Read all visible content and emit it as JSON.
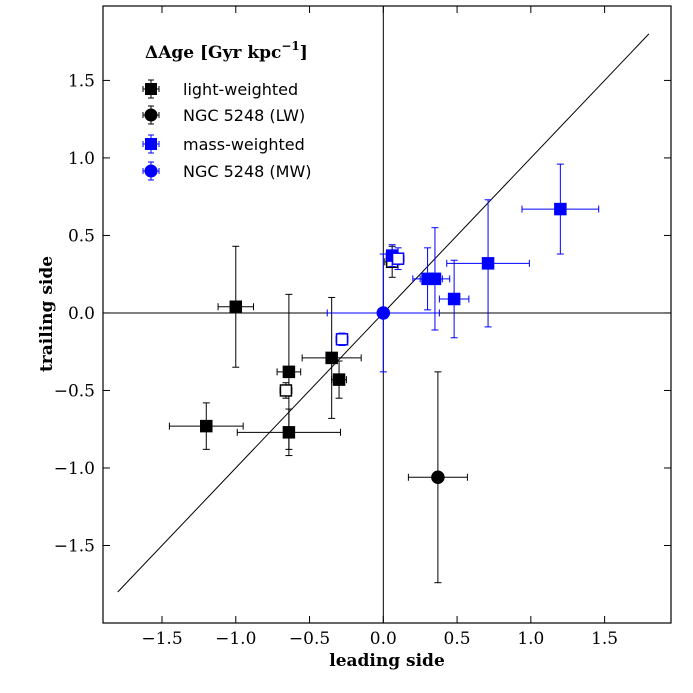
{
  "chart_data": {
    "type": "scatter",
    "title": "",
    "xlabel": "leading side",
    "ylabel": "trailing side",
    "xlim": [
      -1.9,
      1.95
    ],
    "ylim": [
      -2.0,
      1.98
    ],
    "xticks": [
      -1.5,
      -1.0,
      -0.5,
      0.0,
      0.5,
      1.0,
      1.5
    ],
    "yticks": [
      -1.5,
      -1.0,
      -0.5,
      0.0,
      0.5,
      1.0,
      1.5
    ],
    "xtick_labels": [
      "−1.5",
      "−1.0",
      "−0.5",
      "0.0",
      "0.5",
      "1.0",
      "1.5"
    ],
    "ytick_labels": [
      "−1.5",
      "−1.0",
      "−0.5",
      "0.0",
      "0.5",
      "1.0",
      "1.5"
    ],
    "reference_lines": {
      "vertical_x": 0.0,
      "horizontal_y": 0.0,
      "diagonal": {
        "from": [
          -1.8,
          -1.8
        ],
        "to": [
          1.8,
          1.8
        ]
      }
    },
    "legend": {
      "title_main": "ΔAge [Gyr kpc",
      "title_sup": "−1",
      "title_end": "]",
      "placement": "top-left",
      "entries": [
        {
          "label": "light-weighted",
          "marker": "square",
          "color": "#000000"
        },
        {
          "label": "NGC 5248 (LW)",
          "marker": "circle",
          "color": "#000000"
        },
        {
          "label": "mass-weighted",
          "marker": "square",
          "color": "#0000ff"
        },
        {
          "label": "NGC 5248 (MW)",
          "marker": "circle",
          "color": "#0000ff"
        }
      ]
    },
    "series": [
      {
        "name": "light-weighted",
        "color": "#000000",
        "marker": "square",
        "points": [
          {
            "x": -1.0,
            "y": 0.04,
            "xerr": 0.12,
            "yerr": 0.39,
            "filled": true
          },
          {
            "x": -0.64,
            "y": -0.38,
            "xerr": 0.08,
            "yerr": 0.5,
            "filled": true
          },
          {
            "x": -0.66,
            "y": -0.5,
            "xerr": 0.04,
            "yerr": 0.05,
            "filled": false
          },
          {
            "x": -0.35,
            "y": -0.29,
            "xerr": 0.2,
            "yerr": 0.39,
            "filled": true
          },
          {
            "x": -0.3,
            "y": -0.43,
            "xerr": 0.05,
            "yerr": 0.12,
            "filled": true
          },
          {
            "x": -1.2,
            "y": -0.73,
            "xerr": 0.25,
            "yerr": 0.15,
            "filled": true
          },
          {
            "x": -0.64,
            "y": -0.77,
            "xerr": 0.35,
            "yerr": 0.15,
            "filled": true
          },
          {
            "x": 0.06,
            "y": 0.33,
            "xerr": 0.05,
            "yerr": 0.1,
            "filled": false
          }
        ]
      },
      {
        "name": "NGC 5248 (LW)",
        "color": "#000000",
        "marker": "circle",
        "points": [
          {
            "x": 0.37,
            "y": -1.06,
            "xerr": 0.2,
            "yerr": 0.68,
            "filled": true
          }
        ]
      },
      {
        "name": "mass-weighted",
        "color": "#0000ff",
        "marker": "square",
        "points": [
          {
            "x": 0.06,
            "y": 0.37,
            "xerr": 0.04,
            "yerr": 0.07,
            "filled": true
          },
          {
            "x": 0.1,
            "y": 0.35,
            "xerr": 0.04,
            "yerr": 0.07,
            "filled": false
          },
          {
            "x": 0.3,
            "y": 0.22,
            "xerr": 0.1,
            "yerr": 0.2,
            "filled": true
          },
          {
            "x": 0.35,
            "y": 0.22,
            "xerr": 0.1,
            "yerr": 0.33,
            "filled": true
          },
          {
            "x": 0.48,
            "y": 0.09,
            "xerr": 0.1,
            "yerr": 0.25,
            "filled": true
          },
          {
            "x": 0.71,
            "y": 0.32,
            "xerr": 0.28,
            "yerr": 0.41,
            "filled": true
          },
          {
            "x": 1.2,
            "y": 0.67,
            "xerr": 0.26,
            "yerr": 0.29,
            "filled": true
          },
          {
            "x": -0.28,
            "y": -0.17,
            "xerr": 0.04,
            "yerr": 0.04,
            "filled": false
          }
        ]
      },
      {
        "name": "NGC 5248 (MW)",
        "color": "#0000ff",
        "marker": "circle",
        "points": [
          {
            "x": 0.0,
            "y": 0.0,
            "xerr": 0.38,
            "yerr": 0.38,
            "filled": true
          }
        ]
      }
    ]
  }
}
